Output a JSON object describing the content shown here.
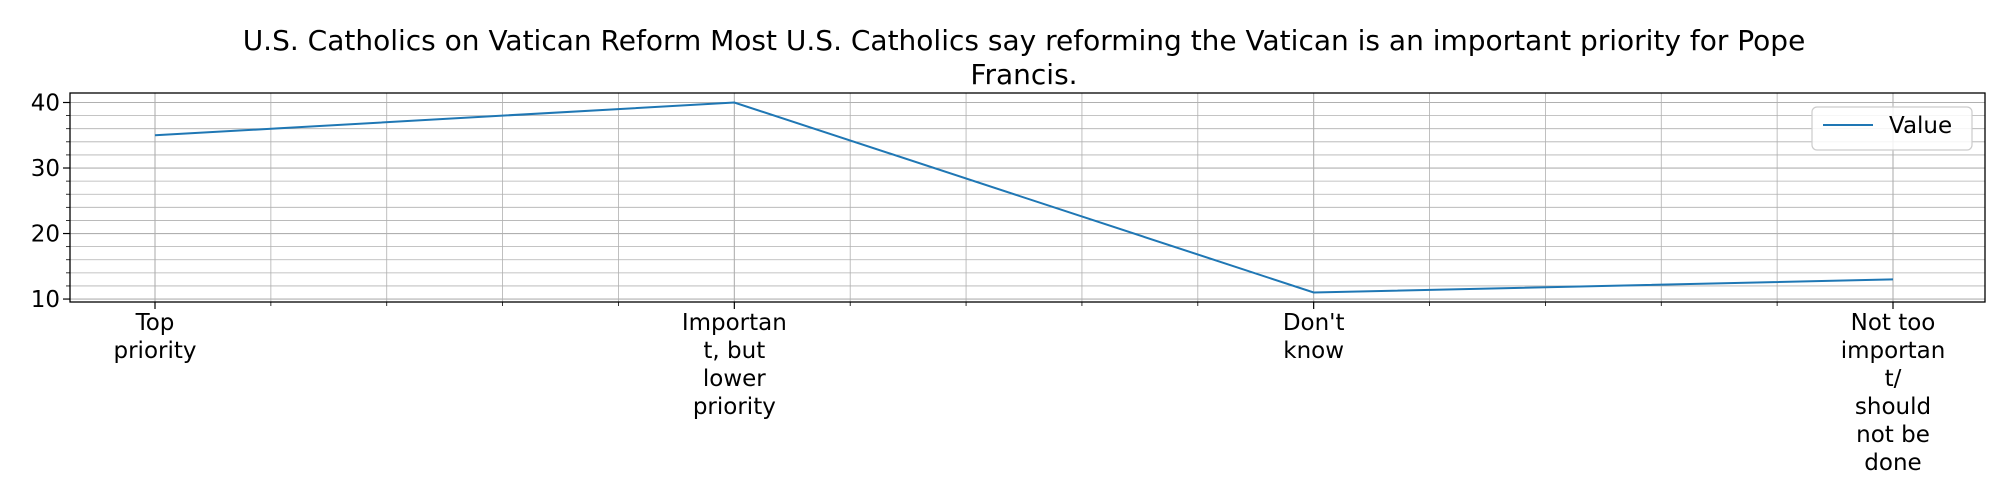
{
  "chart_data": {
    "type": "line",
    "title_lines": [
      "U.S. Catholics on Vatican Reform Most U.S. Catholics say reforming the Vatican is an important priority for Pope",
      "Francis."
    ],
    "xlabel": "",
    "ylabel": "",
    "categories": [
      "Top priority",
      "Important, but lower priority",
      "Don't know",
      "Not too important/ should not be done"
    ],
    "category_label_lines": [
      [
        "Top",
        "priority"
      ],
      [
        "Importan",
        "t, but",
        "lower",
        "priority"
      ],
      [
        "Don't",
        "know"
      ],
      [
        "Not too",
        "importan",
        "t/",
        "should",
        "not be",
        "done"
      ]
    ],
    "series": [
      {
        "name": "Value",
        "values": [
          35,
          40,
          11,
          13
        ]
      }
    ],
    "ylim": [
      9.55,
      41.45
    ],
    "yticks": [
      10,
      20,
      30,
      40
    ],
    "y_minor_step": 2,
    "grid": true,
    "legend_position": "top-right",
    "colors": {
      "series": "#1f77b4",
      "grid": "#b0b0b0",
      "axis": "#000000",
      "legend_border": "#cccccc"
    }
  }
}
